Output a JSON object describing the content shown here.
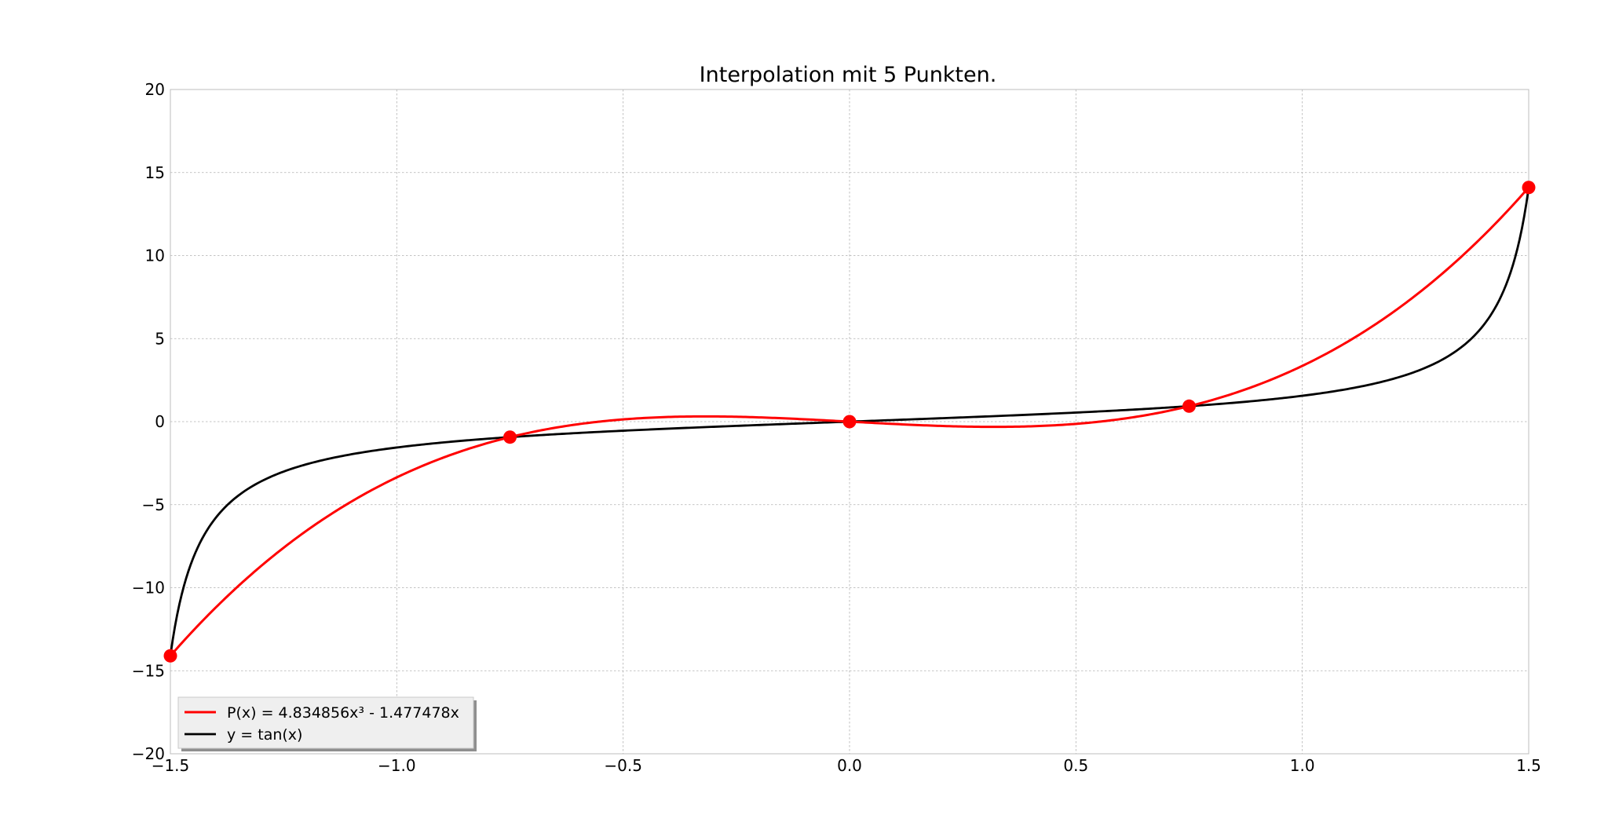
{
  "chart_data": {
    "type": "line",
    "title": "Interpolation mit 5 Punkten.",
    "xlabel": "",
    "ylabel": "",
    "xlim": [
      -1.5,
      1.5
    ],
    "ylim": [
      -20,
      20
    ],
    "x_ticks": [
      -1.5,
      -1.0,
      -0.5,
      0.0,
      0.5,
      1.0,
      1.5
    ],
    "x_tick_labels": [
      "−1.5",
      "−1.0",
      "−0.5",
      "0.0",
      "0.5",
      "1.0",
      "1.5"
    ],
    "y_ticks": [
      -20,
      -15,
      -10,
      -5,
      0,
      5,
      10,
      15,
      20
    ],
    "y_tick_labels": [
      "−20",
      "−15",
      "−10",
      "−5",
      "0",
      "5",
      "10",
      "15",
      "20"
    ],
    "grid": true,
    "legend_position": "lower-left",
    "series": [
      {
        "name": "P(x) = 4.834856x³ - 1.477478x",
        "kind": "function",
        "coefficients": {
          "x3": 4.834856,
          "x1": -1.477478
        },
        "color": "#ff0000"
      },
      {
        "name": "y = tan(x)",
        "kind": "function",
        "function": "tan",
        "color": "#000000"
      }
    ],
    "points": {
      "x": [
        -1.5,
        -0.75,
        0.0,
        0.75,
        1.5
      ],
      "y": [
        -14.1014,
        -0.9316,
        0.0,
        0.9316,
        14.1014
      ],
      "color": "#ff0000"
    }
  }
}
